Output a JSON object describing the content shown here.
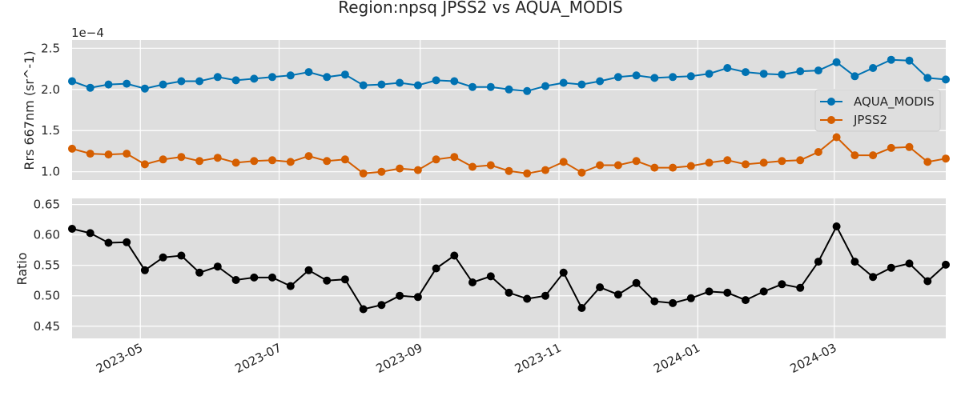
{
  "chart_data": {
    "type": "line",
    "title": "Region:npsq JPSS2 vs AQUA_MODIS",
    "x": [
      "2023-04-01",
      "2023-04-09",
      "2023-04-17",
      "2023-04-25",
      "2023-05-03",
      "2023-05-11",
      "2023-05-19",
      "2023-05-27",
      "2023-06-04",
      "2023-06-12",
      "2023-06-20",
      "2023-06-28",
      "2023-07-06",
      "2023-07-14",
      "2023-07-22",
      "2023-07-30",
      "2023-08-07",
      "2023-08-15",
      "2023-08-23",
      "2023-08-31",
      "2023-09-08",
      "2023-09-16",
      "2023-09-24",
      "2023-10-02",
      "2023-10-10",
      "2023-10-18",
      "2023-10-26",
      "2023-11-03",
      "2023-11-11",
      "2023-11-19",
      "2023-11-27",
      "2023-12-05",
      "2023-12-13",
      "2023-12-21",
      "2023-12-29",
      "2024-01-06",
      "2024-01-14",
      "2024-01-22",
      "2024-01-30",
      "2024-02-07",
      "2024-02-15",
      "2024-02-23",
      "2024-03-02",
      "2024-03-10",
      "2024-03-18",
      "2024-03-26",
      "2024-04-03",
      "2024-04-11",
      "2024-04-19"
    ],
    "x_ticks": [
      "2023-05",
      "2023-07",
      "2023-09",
      "2023-11",
      "2024-01",
      "2024-03"
    ],
    "x_tick_dates": [
      "2023-05-01",
      "2023-07-01",
      "2023-09-01",
      "2023-11-01",
      "2024-01-01",
      "2024-03-01"
    ],
    "x_range": [
      "2023-04-01",
      "2024-04-19"
    ],
    "panels": [
      {
        "ylabel": "Rrs 667nm (sr^-1)",
        "offset_text": "1e−4",
        "ylim": [
          0.9,
          2.6
        ],
        "yticks": [
          "1.0",
          "1.5",
          "2.0",
          "2.5"
        ],
        "ytick_values": [
          1.0,
          1.5,
          2.0,
          2.5
        ],
        "legend": "center-right",
        "series": [
          {
            "name": "AQUA_MODIS",
            "color": "#0072b2",
            "values": [
              2.1,
              2.02,
              2.06,
              2.07,
              2.01,
              2.06,
              2.1,
              2.1,
              2.15,
              2.11,
              2.13,
              2.15,
              2.17,
              2.21,
              2.15,
              2.18,
              2.05,
              2.06,
              2.08,
              2.05,
              2.11,
              2.1,
              2.03,
              2.03,
              2.0,
              1.98,
              2.04,
              2.08,
              2.06,
              2.1,
              2.15,
              2.17,
              2.14,
              2.15,
              2.16,
              2.19,
              2.26,
              2.21,
              2.19,
              2.18,
              2.22,
              2.23,
              2.33,
              2.16,
              2.26,
              2.36,
              2.35,
              2.14,
              2.12
            ]
          },
          {
            "name": "JPSS2",
            "color": "#d55e00",
            "values": [
              1.28,
              1.22,
              1.21,
              1.22,
              1.09,
              1.15,
              1.18,
              1.13,
              1.17,
              1.11,
              1.13,
              1.14,
              1.12,
              1.19,
              1.13,
              1.15,
              0.98,
              1.0,
              1.04,
              1.02,
              1.15,
              1.18,
              1.06,
              1.08,
              1.01,
              0.98,
              1.02,
              1.12,
              0.99,
              1.08,
              1.08,
              1.13,
              1.05,
              1.05,
              1.07,
              1.11,
              1.14,
              1.09,
              1.11,
              1.13,
              1.14,
              1.24,
              1.42,
              1.2,
              1.2,
              1.29,
              1.3,
              1.12,
              1.16
            ]
          }
        ]
      },
      {
        "ylabel": "Ratio",
        "ylim": [
          0.43,
          0.66
        ],
        "yticks": [
          "0.45",
          "0.50",
          "0.55",
          "0.60",
          "0.65"
        ],
        "ytick_values": [
          0.45,
          0.5,
          0.55,
          0.6,
          0.65
        ],
        "series": [
          {
            "color": "#000000",
            "values": [
              0.61,
              0.603,
              0.587,
              0.588,
              0.542,
              0.563,
              0.566,
              0.538,
              0.548,
              0.526,
              0.53,
              0.53,
              0.516,
              0.542,
              0.525,
              0.527,
              0.478,
              0.485,
              0.5,
              0.498,
              0.545,
              0.566,
              0.522,
              0.532,
              0.505,
              0.495,
              0.5,
              0.538,
              0.48,
              0.514,
              0.502,
              0.521,
              0.491,
              0.488,
              0.496,
              0.507,
              0.505,
              0.493,
              0.507,
              0.519,
              0.513,
              0.556,
              0.614,
              0.556,
              0.531,
              0.546,
              0.553,
              0.524,
              0.551
            ]
          }
        ]
      }
    ],
    "grid": true,
    "colors": {
      "background": "#dedede",
      "grid": "#ffffff",
      "text": "#262626"
    }
  }
}
